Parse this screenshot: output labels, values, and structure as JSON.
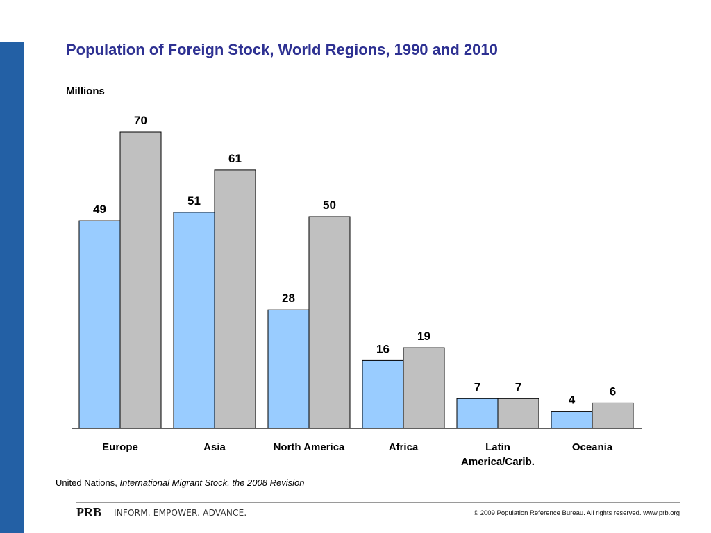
{
  "colors": {
    "side_bar": "#2360a5",
    "title": "#2e3192",
    "series_1990": "#99ccff",
    "series_2010": "#c0c0c0",
    "bar_stroke": "#000000"
  },
  "chart_data": {
    "type": "bar",
    "title": "Population of Foreign Stock, World Regions, 1990 and 2010",
    "ylabel": "Millions",
    "xlabel": "",
    "ylim": [
      0,
      80
    ],
    "grid": false,
    "legend": "none",
    "categories": [
      [
        "Europe"
      ],
      [
        "Asia"
      ],
      [
        "North America"
      ],
      [
        "Africa"
      ],
      [
        "Latin",
        "America/Carib."
      ],
      [
        "Oceania"
      ]
    ],
    "series": [
      {
        "values": [
          49,
          51,
          28,
          16,
          7,
          4
        ]
      },
      {
        "values": [
          70,
          61,
          50,
          19,
          7,
          6
        ]
      }
    ]
  },
  "source": {
    "org": "United Nations,",
    "publication": "International Migrant Stock, the 2008 Revision"
  },
  "footer": {
    "logo_mark": "PRB",
    "tagline": "INFORM. EMPOWER. ADVANCE.",
    "copyright": "© 2009 Population Reference Bureau. All rights reserved. www.prb.org"
  }
}
